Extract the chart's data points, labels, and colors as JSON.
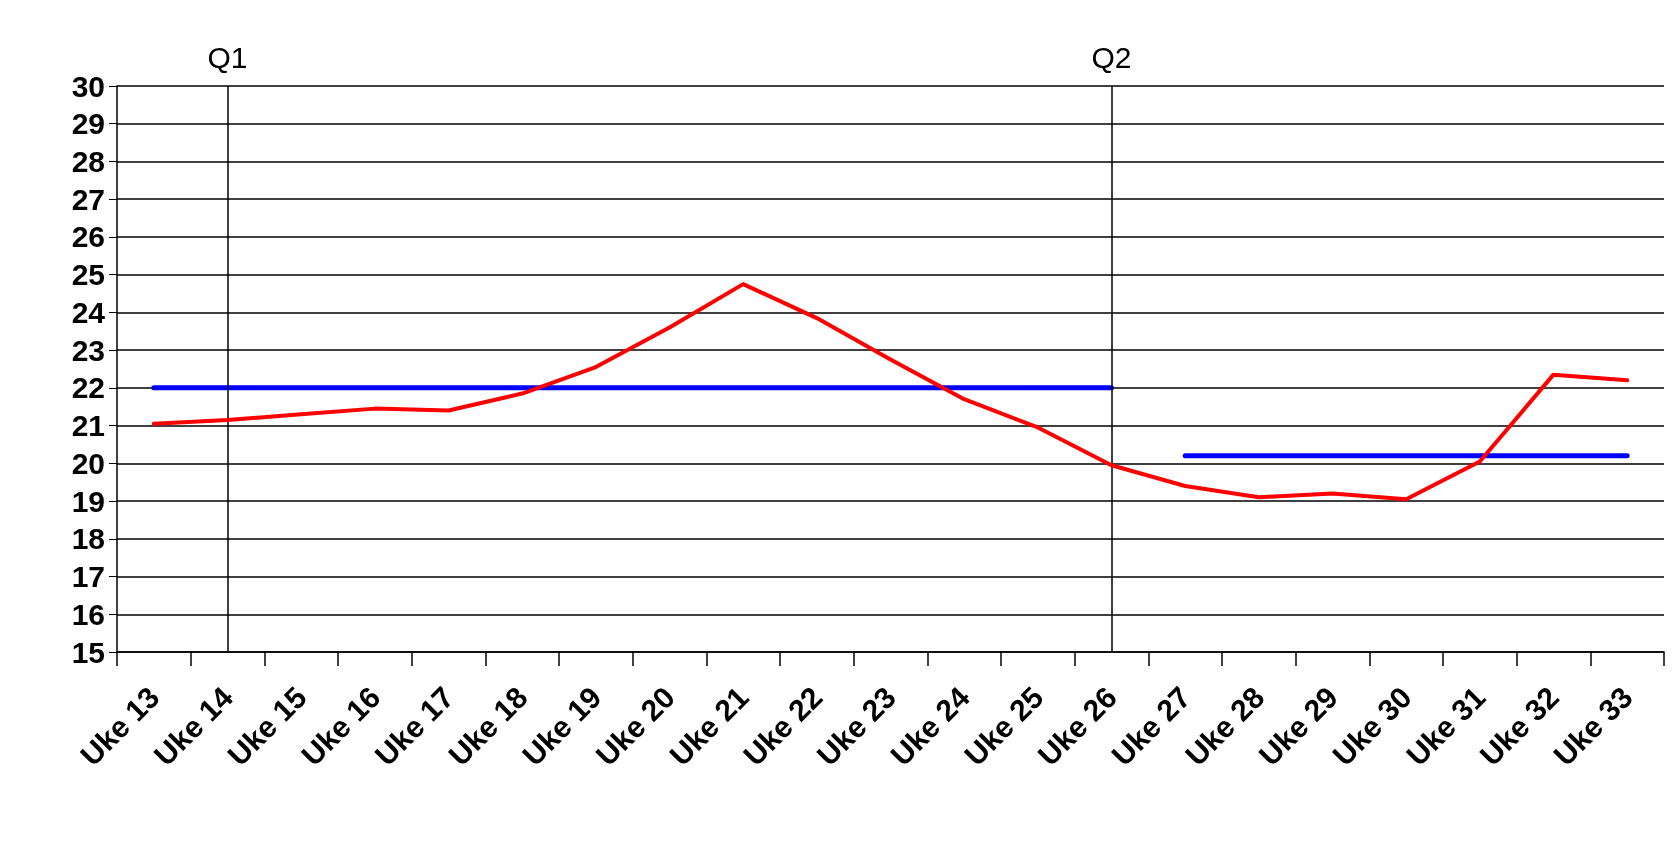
{
  "chart_data": {
    "type": "line",
    "categories": [
      "Uke 13",
      "Uke 14",
      "Uke 15",
      "Uke 16",
      "Uke 17",
      "Uke 18",
      "Uke 19",
      "Uke 20",
      "Uke 21",
      "Uke 22",
      "Uke 23",
      "Uke 24",
      "Uke 25",
      "Uke 26",
      "Uke 27",
      "Uke 28",
      "Uke 29",
      "Uke 30",
      "Uke 31",
      "Uke 32",
      "Uke 33"
    ],
    "series": [
      {
        "color": "#ff0000",
        "values": [
          21.05,
          21.15,
          21.3,
          21.45,
          21.4,
          21.85,
          22.55,
          23.6,
          24.75,
          23.85,
          22.75,
          21.7,
          20.95,
          19.95,
          19.4,
          19.1,
          19.2,
          19.05,
          20.05,
          22.35,
          22.2
        ]
      },
      {
        "color": "#0000ff",
        "values": [
          22,
          22,
          22,
          22,
          22,
          22,
          22,
          22,
          22,
          22,
          22,
          22,
          22,
          22,
          null,
          null,
          null,
          null,
          null,
          null,
          null
        ]
      },
      {
        "color": "#0000ff",
        "values": [
          null,
          null,
          null,
          null,
          null,
          null,
          null,
          null,
          null,
          null,
          null,
          null,
          null,
          null,
          20.2,
          20.2,
          20.2,
          20.2,
          20.2,
          20.2,
          20.2
        ]
      }
    ],
    "ylim": [
      15,
      30
    ],
    "yticks": [
      15,
      16,
      17,
      18,
      19,
      20,
      21,
      22,
      23,
      24,
      25,
      26,
      27,
      28,
      29,
      30
    ],
    "grid": "y",
    "ref_lines": [
      {
        "axis": "x",
        "value": "Uke 14",
        "label": "Q1"
      },
      {
        "axis": "x",
        "value": "Uke 26",
        "label": "Q2"
      }
    ]
  }
}
